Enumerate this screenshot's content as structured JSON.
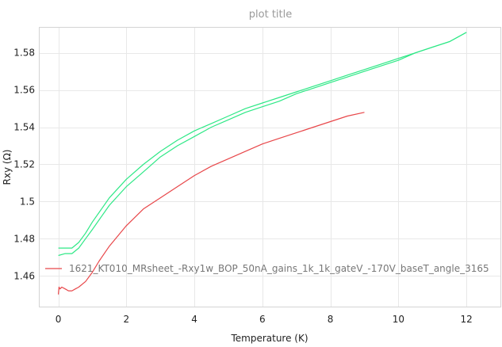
{
  "chart_data": {
    "type": "line",
    "title": "plot title",
    "xlabel": "Temperature (K)",
    "ylabel": "Rxy (Ω)",
    "xlim": [
      -0.55,
      13.0
    ],
    "ylim": [
      1.4435,
      1.5935
    ],
    "xticks": [
      0,
      2,
      4,
      6,
      8,
      10,
      12
    ],
    "yticks": [
      1.46,
      1.48,
      1.5,
      1.52,
      1.54,
      1.56,
      1.58
    ],
    "ytick_labels": [
      "1.46",
      "1.48",
      "1.5",
      "1.52",
      "1.54",
      "1.56",
      "1.58"
    ],
    "grid": true,
    "legend": {
      "entries": [
        "1621_KT010_MRsheet_-Rxy1w_BOP_50nA_gains_1k_1k_gateV_-170V_baseT_angle_3165"
      ],
      "placement": "bottom-left"
    },
    "series": [
      {
        "name": "1621_KT010_MRsheet_-Rxy1w_BOP_50nA_gains_1k_1k_gateV_-170V_baseT_angle_3165",
        "color": "#e8474a",
        "x": [
          0.0,
          0.02,
          0.05,
          0.1,
          0.2,
          0.3,
          0.4,
          0.5,
          0.6,
          0.8,
          1.0,
          1.2,
          1.5,
          2.0,
          2.5,
          3.0,
          3.5,
          4.0,
          4.5,
          5.0,
          5.5,
          6.0,
          6.5,
          7.0,
          7.5,
          8.0,
          8.5,
          9.0
        ],
        "y": [
          1.45,
          1.454,
          1.453,
          1.454,
          1.453,
          1.452,
          1.452,
          1.453,
          1.454,
          1.457,
          1.462,
          1.468,
          1.476,
          1.487,
          1.496,
          1.502,
          1.508,
          1.514,
          1.519,
          1.523,
          1.527,
          1.531,
          1.534,
          1.537,
          1.54,
          1.543,
          1.546,
          1.548
        ]
      },
      {
        "color": "#2ee886",
        "x": [
          0.0,
          0.2,
          0.4,
          0.6,
          0.8,
          1.0,
          1.5,
          2.0,
          2.5,
          3.0,
          3.5,
          4.0,
          4.5,
          5.0,
          5.5,
          6.0,
          6.5,
          7.0,
          7.5,
          8.0,
          8.5,
          9.0,
          9.5,
          10.0,
          10.5,
          11.0,
          11.5,
          12.0
        ],
        "y": [
          1.475,
          1.475,
          1.475,
          1.478,
          1.483,
          1.489,
          1.502,
          1.512,
          1.52,
          1.527,
          1.533,
          1.538,
          1.542,
          1.546,
          1.55,
          1.553,
          1.556,
          1.559,
          1.562,
          1.565,
          1.568,
          1.571,
          1.574,
          1.577,
          1.58,
          1.583,
          1.586,
          1.591
        ]
      },
      {
        "color": "#2ee886",
        "x": [
          0.0,
          0.2,
          0.4,
          0.6,
          0.8,
          1.0,
          1.5,
          2.0,
          2.5,
          3.0,
          3.5,
          4.0,
          4.5,
          5.0,
          5.5,
          6.0,
          6.5,
          7.0,
          7.5,
          8.0,
          8.5,
          9.0,
          9.5,
          10.0,
          10.5,
          11.0,
          11.5,
          12.0
        ],
        "y": [
          1.471,
          1.472,
          1.472,
          1.475,
          1.48,
          1.485,
          1.498,
          1.508,
          1.516,
          1.524,
          1.53,
          1.535,
          1.54,
          1.544,
          1.548,
          1.551,
          1.554,
          1.558,
          1.561,
          1.564,
          1.567,
          1.57,
          1.573,
          1.576,
          1.58,
          1.583,
          1.586,
          1.591
        ]
      }
    ]
  }
}
